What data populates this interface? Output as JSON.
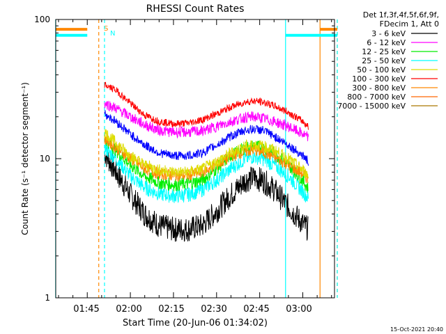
{
  "chart_data": {
    "type": "line",
    "title": "RHESSI Count Rates",
    "xlabel": "Start Time (20-Jun-06 01:34:02)",
    "ylabel": "Count Rate (s⁻¹ detector segment⁻¹)",
    "yscale": "log",
    "ylim": [
      1,
      100
    ],
    "xlim_minutes_after_start": [
      0,
      97
    ],
    "x_ticks": [
      "01:45",
      "02:00",
      "02:15",
      "02:30",
      "02:45",
      "03:00"
    ],
    "y_ticks": [
      "1",
      "10",
      "100"
    ],
    "legend_title": [
      "Det 1f,3f,4f,5f,6f,9f,",
      "FDecim 1, Att 0"
    ],
    "legend_position": "outside-right",
    "timestamp": "15-Oct-2021 20:40",
    "series": [
      {
        "name": "3 - 6 keV",
        "color": "#000000",
        "x_times": [
          "01:51",
          "01:55",
          "02:00",
          "02:05",
          "02:10",
          "02:15",
          "02:20",
          "02:25",
          "02:30",
          "02:35",
          "02:40",
          "02:43",
          "02:46",
          "02:50",
          "02:55",
          "03:00",
          "03:02"
        ],
        "values": [
          11,
          8,
          5.5,
          4,
          3.3,
          3.1,
          3.1,
          3.3,
          4.2,
          5.5,
          7,
          7.3,
          7,
          6,
          4.5,
          3.4,
          3.1
        ]
      },
      {
        "name": "6 - 12 keV",
        "color": "#ff00ff",
        "x_times": [
          "01:51",
          "01:55",
          "02:00",
          "02:05",
          "02:10",
          "02:15",
          "02:20",
          "02:25",
          "02:30",
          "02:35",
          "02:40",
          "02:43",
          "02:46",
          "02:50",
          "02:55",
          "03:00",
          "03:02"
        ],
        "values": [
          25,
          23,
          20,
          17.5,
          16,
          15.5,
          15.5,
          15.8,
          17,
          18.5,
          19.8,
          20,
          19.5,
          18.5,
          17,
          15,
          14
        ]
      },
      {
        "name": "12 - 25 keV",
        "color": "#00ee00",
        "x_times": [
          "01:51",
          "01:55",
          "02:00",
          "02:05",
          "02:10",
          "02:15",
          "02:20",
          "02:25",
          "02:30",
          "02:35",
          "02:40",
          "02:43",
          "02:46",
          "02:50",
          "02:55",
          "03:00",
          "03:02"
        ],
        "values": [
          14,
          11.5,
          9,
          7.5,
          6.7,
          6.5,
          6.6,
          7,
          8.5,
          10.5,
          12,
          12.3,
          12,
          11,
          9,
          7,
          6
        ]
      },
      {
        "name": "25 - 50 keV",
        "color": "#00ffff",
        "x_times": [
          "01:51",
          "01:55",
          "02:00",
          "02:05",
          "02:10",
          "02:15",
          "02:20",
          "02:25",
          "02:30",
          "02:35",
          "02:40",
          "02:43",
          "02:46",
          "02:50",
          "02:55",
          "03:00",
          "03:02"
        ],
        "values": [
          12,
          10,
          7.5,
          6.2,
          5.6,
          5.4,
          5.5,
          6,
          7,
          8.5,
          10,
          10.4,
          10,
          9,
          7.5,
          5.8,
          5.2
        ]
      },
      {
        "name": "50 - 100 keV",
        "color": "#dddd00",
        "x_times": [
          "01:51",
          "01:55",
          "02:00",
          "02:05",
          "02:10",
          "02:15",
          "02:20",
          "02:25",
          "02:30",
          "02:35",
          "02:40",
          "02:43",
          "02:46",
          "02:50",
          "02:55",
          "03:00",
          "03:02"
        ],
        "values": [
          15.5,
          13,
          10.5,
          9,
          8.3,
          8,
          8,
          8.4,
          9.5,
          11,
          12.3,
          12.6,
          12.3,
          11.5,
          10,
          8.3,
          7.5
        ]
      },
      {
        "name": "100 - 300 keV",
        "color": "#ff0000",
        "x_times": [
          "01:51",
          "01:55",
          "02:00",
          "02:05",
          "02:10",
          "02:15",
          "02:20",
          "02:25",
          "02:30",
          "02:35",
          "02:40",
          "02:43",
          "02:46",
          "02:50",
          "02:55",
          "03:00",
          "03:02"
        ],
        "values": [
          34,
          31,
          25,
          20.5,
          18.5,
          17.8,
          18,
          19,
          21,
          23.5,
          25.5,
          26,
          25.5,
          24,
          21.5,
          18.5,
          17
        ]
      },
      {
        "name": "300 - 800 keV",
        "color": "#ff8800",
        "x_times": [
          "01:51",
          "01:55",
          "02:00",
          "02:05",
          "02:10",
          "02:15",
          "02:20",
          "02:25",
          "02:30",
          "02:35",
          "02:40",
          "02:43",
          "02:46",
          "02:50",
          "02:55",
          "03:00",
          "03:02"
        ],
        "values": [
          14,
          12,
          10,
          8.5,
          7.8,
          7.6,
          7.6,
          8,
          9,
          10.4,
          11.3,
          11.5,
          11.2,
          10.3,
          9,
          7.8,
          7
        ]
      },
      {
        "name": "800 - 7000 keV",
        "color": "#ff6600",
        "x_times": [],
        "values": []
      },
      {
        "name": "7000 - 15000 keV",
        "color": "#aa7700",
        "x_times": [],
        "values": []
      }
    ],
    "blue_series": {
      "color": "#0000ff",
      "x_times": [
        "01:51",
        "01:55",
        "02:00",
        "02:05",
        "02:10",
        "02:15",
        "02:20",
        "02:25",
        "02:30",
        "02:35",
        "02:40",
        "02:43",
        "02:46",
        "02:50",
        "02:55",
        "03:00",
        "03:02"
      ],
      "values": [
        21,
        18.5,
        15,
        12.5,
        11,
        10.5,
        10.5,
        11,
        12.5,
        14.5,
        16,
        16.3,
        16,
        14.5,
        12.5,
        10.5,
        9.5
      ]
    },
    "markers": [
      {
        "label": "S",
        "color": "#ff8800"
      },
      {
        "label": "N",
        "color": "#00ffff"
      }
    ],
    "state_bars": [
      {
        "color": "#ff8800",
        "value": 85,
        "segments": [
          [
            "01:34",
            "01:45"
          ],
          [
            "03:06",
            "03:12"
          ]
        ]
      },
      {
        "color": "#00ffff",
        "value": 77,
        "segments": [
          [
            "01:34",
            "01:45"
          ],
          [
            "02:54",
            "03:12"
          ]
        ]
      }
    ],
    "vertical_lines": [
      {
        "color": "#00ffff",
        "time": "01:34",
        "style": "solid"
      },
      {
        "color": "#ff8800",
        "time": "01:49",
        "style": "dashed"
      },
      {
        "color": "#00ffff",
        "time": "01:51",
        "style": "dashed"
      },
      {
        "color": "#00ffff",
        "time": "02:54",
        "style": "solid"
      },
      {
        "color": "#ff8800",
        "time": "03:06",
        "style": "solid"
      },
      {
        "color": "#ff8800",
        "time": "03:12",
        "style": "dashed"
      },
      {
        "color": "#00ffff",
        "time": "03:12",
        "style": "dashed"
      }
    ]
  }
}
